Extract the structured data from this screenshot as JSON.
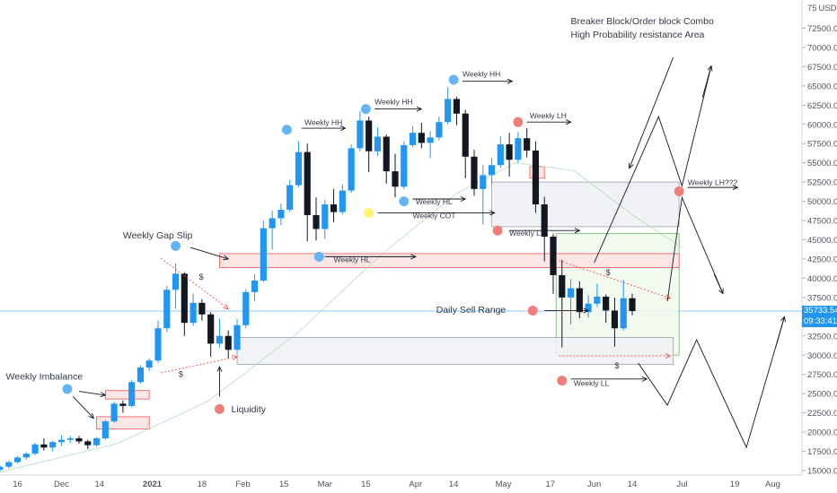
{
  "chart_data": {
    "type": "candlestick",
    "currency_label": "USD",
    "y_axis": {
      "ticks": [
        15000,
        17500,
        20000,
        22500,
        25000,
        27500,
        30000,
        32500,
        35000,
        37500,
        40000,
        42500,
        45000,
        47500,
        50000,
        52500,
        55000,
        57500,
        60000,
        62500,
        65000,
        67500,
        70000,
        72500,
        75000
      ],
      "range": [
        15000,
        75000
      ]
    },
    "x_axis": {
      "ticks": [
        "16",
        "Dec",
        "14",
        "2021",
        "18",
        "Feb",
        "15",
        "Mar",
        "15",
        "Apr",
        "14",
        "May",
        "17",
        "Jun",
        "14",
        "Jul",
        "19",
        "Aug"
      ],
      "range": [
        "2020-11-10",
        "2021-08-07"
      ]
    },
    "last_price": "35733.54",
    "countdown": "09:33:41",
    "candles": [
      [
        "2020-11-10",
        15100,
        15700,
        14900,
        15500
      ],
      [
        "2020-11-13",
        15500,
        16300,
        15300,
        16100
      ],
      [
        "2020-11-16",
        16100,
        16900,
        15900,
        16700
      ],
      [
        "2020-11-19",
        16700,
        17400,
        16400,
        17200
      ],
      [
        "2020-11-22",
        17200,
        18600,
        17000,
        18400
      ],
      [
        "2020-11-25",
        18400,
        19200,
        17600,
        18000
      ],
      [
        "2020-11-28",
        18000,
        18900,
        17500,
        18700
      ],
      [
        "2020-12-01",
        18700,
        19600,
        18200,
        19000
      ],
      [
        "2020-12-04",
        19000,
        19500,
        18600,
        19200
      ],
      [
        "2020-12-07",
        19200,
        19500,
        18500,
        18800
      ],
      [
        "2020-12-10",
        18800,
        19000,
        17800,
        18300
      ],
      [
        "2020-12-13",
        18300,
        19400,
        18100,
        19200
      ],
      [
        "2020-12-16",
        19200,
        21600,
        19000,
        21400
      ],
      [
        "2020-12-19",
        21400,
        24000,
        21200,
        23700
      ],
      [
        "2020-12-22",
        23700,
        24100,
        22500,
        23400
      ],
      [
        "2020-12-25",
        23400,
        26800,
        23200,
        26500
      ],
      [
        "2020-12-28",
        26500,
        28700,
        26300,
        28400
      ],
      [
        "2020-12-31",
        28400,
        29600,
        28000,
        29300
      ],
      [
        "2021-01-03",
        29300,
        34500,
        29000,
        33500
      ],
      [
        "2021-01-06",
        33500,
        39000,
        33000,
        38500
      ],
      [
        "2021-01-09",
        38500,
        41900,
        36000,
        40600
      ],
      [
        "2021-01-12",
        40600,
        40800,
        32500,
        34200
      ],
      [
        "2021-01-15",
        34200,
        38000,
        33800,
        36800
      ],
      [
        "2021-01-18",
        36800,
        37300,
        34500,
        35300
      ],
      [
        "2021-01-21",
        35300,
        35600,
        29800,
        31500
      ],
      [
        "2021-01-24",
        31500,
        34800,
        31000,
        32500
      ],
      [
        "2021-01-27",
        32500,
        33200,
        29600,
        30700
      ],
      [
        "2021-01-30",
        30700,
        34700,
        30300,
        33900
      ],
      [
        "2021-02-02",
        33900,
        38600,
        33500,
        38200
      ],
      [
        "2021-02-05",
        38200,
        40500,
        37000,
        39700
      ],
      [
        "2021-02-08",
        39700,
        47500,
        39500,
        46500
      ],
      [
        "2021-02-11",
        46500,
        48800,
        43700,
        47800
      ],
      [
        "2021-02-14",
        47800,
        49700,
        46900,
        48900
      ],
      [
        "2021-02-17",
        48900,
        52800,
        48600,
        52100
      ],
      [
        "2021-02-20",
        52100,
        57800,
        51800,
        56400
      ],
      [
        "2021-02-23",
        56400,
        57500,
        44800,
        48200
      ],
      [
        "2021-02-26",
        48200,
        50500,
        44900,
        46400
      ],
      [
        "2021-03-01",
        46400,
        50200,
        45100,
        49600
      ],
      [
        "2021-03-04",
        49600,
        51600,
        47300,
        48600
      ],
      [
        "2021-03-07",
        48600,
        52200,
        48300,
        51400
      ],
      [
        "2021-03-10",
        51400,
        57400,
        51100,
        56900
      ],
      [
        "2021-03-13",
        56900,
        61700,
        56500,
        60500
      ],
      [
        "2021-03-16",
        60500,
        61000,
        53800,
        56500
      ],
      [
        "2021-03-19",
        56500,
        59600,
        55900,
        58400
      ],
      [
        "2021-03-22",
        58400,
        58700,
        52300,
        53900
      ],
      [
        "2021-03-25",
        53900,
        56200,
        50500,
        51900
      ],
      [
        "2021-03-28",
        51900,
        57800,
        51600,
        57300
      ],
      [
        "2021-03-31",
        57300,
        59800,
        57000,
        58900
      ],
      [
        "2021-04-03",
        58900,
        60200,
        56900,
        57600
      ],
      [
        "2021-04-06",
        57600,
        59100,
        55600,
        58300
      ],
      [
        "2021-04-09",
        58300,
        61000,
        57900,
        60300
      ],
      [
        "2021-04-12",
        60300,
        64800,
        60000,
        63300
      ],
      [
        "2021-04-15",
        63300,
        63600,
        59900,
        61400
      ],
      [
        "2021-04-18",
        61400,
        61900,
        53000,
        55800
      ],
      [
        "2021-04-21",
        55800,
        56700,
        50700,
        51600
      ],
      [
        "2021-04-24",
        51600,
        54700,
        47000,
        53400
      ],
      [
        "2021-04-27",
        53400,
        55600,
        52300,
        54700
      ],
      [
        "2021-04-30",
        54700,
        58500,
        54300,
        57400
      ],
      [
        "2021-05-03",
        57400,
        58900,
        53200,
        55400
      ],
      [
        "2021-05-06",
        55400,
        59000,
        55000,
        58200
      ],
      [
        "2021-05-09",
        58200,
        59500,
        55700,
        56600
      ],
      [
        "2021-05-12",
        56600,
        57800,
        48500,
        49600
      ],
      [
        "2021-05-15",
        49600,
        50600,
        42200,
        45400
      ],
      [
        "2021-05-18",
        45400,
        45800,
        38000,
        40400
      ],
      [
        "2021-05-21",
        40400,
        42400,
        31000,
        37500
      ],
      [
        "2021-05-24",
        37500,
        39900,
        34000,
        38700
      ],
      [
        "2021-05-27",
        38700,
        39600,
        34800,
        35600
      ],
      [
        "2021-05-30",
        35600,
        37800,
        34900,
        36700
      ],
      [
        "2021-06-02",
        36700,
        39300,
        36300,
        37600
      ],
      [
        "2021-06-05",
        37600,
        37900,
        34200,
        35800
      ],
      [
        "2021-06-08",
        35800,
        37500,
        31100,
        33500
      ],
      [
        "2021-06-11",
        33500,
        39800,
        33200,
        37400
      ],
      [
        "2021-06-14",
        37400,
        38000,
        35200,
        35733
      ]
    ],
    "annotations": [
      {
        "text": "Weekly Imbalance"
      },
      {
        "text": "Weekly Gap Slip"
      },
      {
        "text": "Liquidity"
      },
      {
        "text": "Weekly HH"
      },
      {
        "text": "Weekly HH"
      },
      {
        "text": "Weekly HH"
      },
      {
        "text": "Weekly HL"
      },
      {
        "text": "Weekly HL"
      },
      {
        "text": "Weekly COT"
      },
      {
        "text": "Weekly LH"
      },
      {
        "text": "Weekly LL"
      },
      {
        "text": "Weekly LL"
      },
      {
        "text": "Weekly LH???"
      },
      {
        "text": "Daily Sell Range"
      },
      {
        "text": "Breaker Block/Order block Combo"
      },
      {
        "text": "High Probability resistance Area"
      },
      {
        "text": "$"
      },
      {
        "text": "$"
      },
      {
        "text": "$"
      },
      {
        "text": "$"
      }
    ],
    "colors": {
      "up": "#2196f3",
      "down": "#131722",
      "blue_marker": "#64b5f6",
      "red_marker": "#ef7f7a",
      "yellow_marker": "#fff176",
      "red_zone_fill": "#fbe3e3",
      "red_zone_stroke": "#ef5350",
      "grey_zone_fill": "#f0f1f5",
      "grey_zone_stroke": "#9aa0ae",
      "green_zone_fill": "#f1f8ec",
      "green_zone_stroke": "#66bb6a",
      "price_line": "#90caf9",
      "badge_bg": "#2196f3"
    }
  }
}
